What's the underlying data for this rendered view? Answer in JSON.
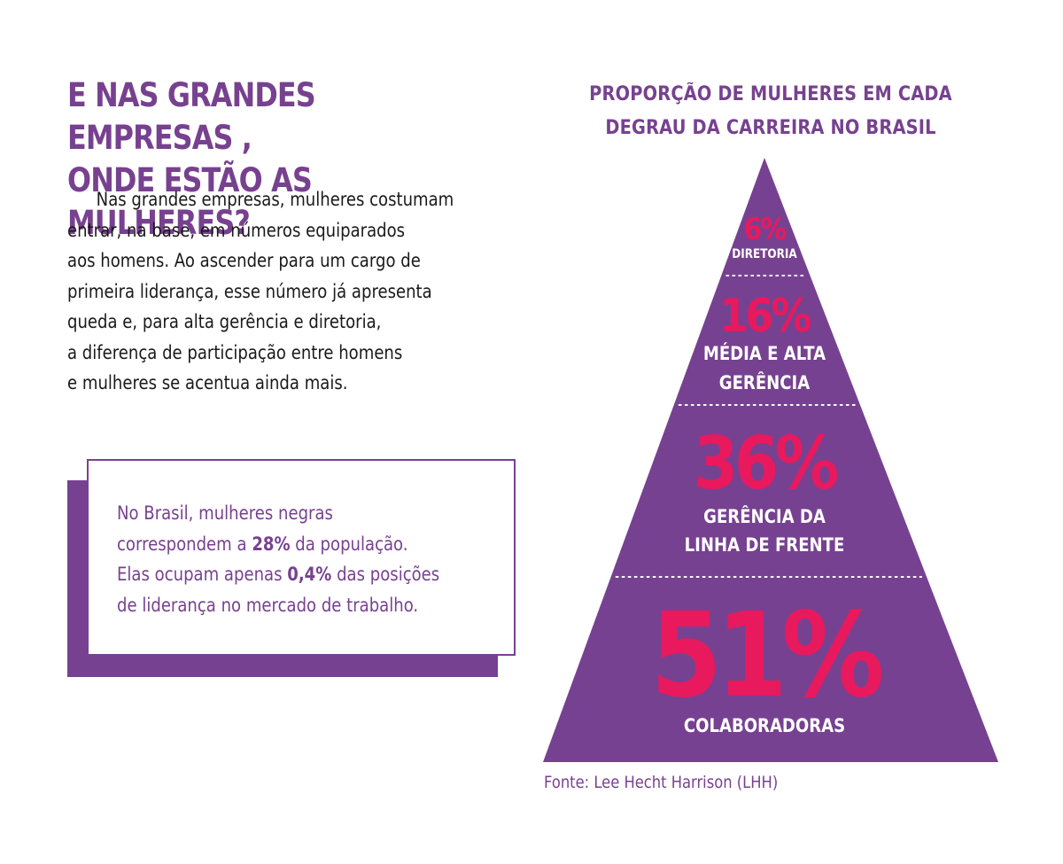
{
  "headline": {
    "line1": "E NAS GRANDES EMPRESAS ,",
    "line2": "ONDE ESTÃO AS MULHERES?"
  },
  "body": {
    "lines": [
      "Nas grandes empresas, mulheres costumam",
      "entrar, na base, em números equiparados",
      "aos homens. Ao ascender para um cargo de",
      "primeira liderança, esse número já apresenta",
      "queda e, para alta gerência e diretoria,",
      "a diferença de participação entre homens",
      "e mulheres se acentua ainda mais."
    ]
  },
  "callout": {
    "line1": "No Brasil, mulheres negras",
    "line2_pre": "correspondem a ",
    "line2_bold": "28%",
    "line2_post": " da população.",
    "line3_pre": "Elas ocupam apenas ",
    "line3_bold": "0,4%",
    "line3_post": " das posições",
    "line4": "de liderança no mercado de trabalho."
  },
  "chart_data": {
    "type": "pyramid",
    "title": "PROPORÇÃO DE MULHERES EM CADA DEGRAU DA CARREIRA NO BRASIL",
    "title_lines": [
      "PROPORÇÃO DE MULHERES EM CADA",
      "DEGRAU DA CARREIRA NO BRASIL"
    ],
    "unit": "%",
    "levels": [
      {
        "value": 6,
        "value_label": "6%",
        "label_lines": [
          "DIRETORIA"
        ]
      },
      {
        "value": 16,
        "value_label": "16%",
        "label_lines": [
          "MÉDIA E ALTA",
          "GERÊNCIA"
        ]
      },
      {
        "value": 36,
        "value_label": "36%",
        "label_lines": [
          "GERÊNCIA DA",
          "LINHA DE FRENTE"
        ]
      },
      {
        "value": 51,
        "value_label": "51%",
        "label_lines": [
          "COLABORADORAS"
        ]
      }
    ],
    "source": "Fonte: Lee Hecht Harrison (LHH)"
  },
  "colors": {
    "purple": "#774191",
    "magenta": "#e8195d",
    "white": "#ffffff",
    "text": "#1a1a1a"
  }
}
